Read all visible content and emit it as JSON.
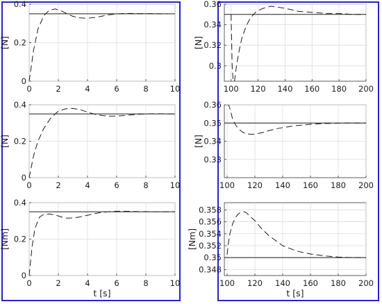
{
  "chart_data": [
    {
      "type": "line",
      "panel": "left-top",
      "ylabel": "[N]",
      "xlabel": "",
      "xlim": [
        0,
        10
      ],
      "ylim": [
        0,
        0.4
      ],
      "xticks": [
        0,
        2,
        4,
        6,
        8,
        10
      ],
      "xtick_labels": [
        "0",
        "2",
        "4",
        "6",
        "8",
        "10"
      ],
      "yticks": [
        0,
        0.2,
        0.4
      ],
      "ytick_labels": [
        "0",
        "0.2",
        "0.4"
      ],
      "grid": true,
      "series": [
        {
          "style": "solid",
          "x": [
            0,
            10
          ],
          "y": [
            0.35,
            0.35
          ]
        },
        {
          "style": "dashed",
          "x": [
            0,
            0.3,
            0.6,
            1.0,
            1.4,
            1.8,
            2.2,
            2.6,
            3.0,
            3.5,
            4.0,
            4.5,
            5.0,
            5.5,
            6.0,
            6.5,
            7.0,
            7.5,
            8.0,
            8.5,
            9.0,
            9.5
          ],
          "y": [
            0,
            0.16,
            0.27,
            0.34,
            0.37,
            0.375,
            0.365,
            0.35,
            0.337,
            0.329,
            0.327,
            0.331,
            0.338,
            0.345,
            0.349,
            0.352,
            0.352,
            0.351,
            0.351,
            0.351,
            0.35,
            0.35
          ]
        }
      ]
    },
    {
      "type": "line",
      "panel": "left-middle",
      "ylabel": "[N]",
      "xlabel": "",
      "xlim": [
        0,
        10
      ],
      "ylim": [
        0,
        0.4
      ],
      "xticks": [
        0,
        2,
        4,
        6,
        8,
        10
      ],
      "xtick_labels": [
        "0",
        "2",
        "4",
        "6",
        "8",
        "10"
      ],
      "yticks": [
        0,
        0.2,
        0.4
      ],
      "ytick_labels": [
        "0",
        "0.2",
        "0.4"
      ],
      "grid": true,
      "series": [
        {
          "style": "solid",
          "x": [
            0,
            10
          ],
          "y": [
            0.35,
            0.35
          ]
        },
        {
          "style": "dashed",
          "x": [
            0,
            0.3,
            0.6,
            1.0,
            1.5,
            2.0,
            2.5,
            3.0,
            3.5,
            4.0,
            4.5,
            5.0,
            5.5,
            6.0,
            6.5,
            7.0,
            7.5,
            8.0,
            8.5,
            9.0,
            9.5,
            10.0
          ],
          "y": [
            0,
            0.12,
            0.2,
            0.27,
            0.33,
            0.365,
            0.378,
            0.38,
            0.373,
            0.36,
            0.348,
            0.341,
            0.338,
            0.338,
            0.341,
            0.345,
            0.348,
            0.35,
            0.351,
            0.351,
            0.35,
            0.35
          ]
        }
      ]
    },
    {
      "type": "line",
      "panel": "left-bottom",
      "ylabel": "[Nm]",
      "xlabel": "t [s]",
      "xlim": [
        0,
        10
      ],
      "ylim": [
        0,
        0.4
      ],
      "xticks": [
        0,
        2,
        4,
        6,
        8,
        10
      ],
      "xtick_labels": [
        "0",
        "2",
        "4",
        "6",
        "8",
        "10"
      ],
      "yticks": [
        0,
        0.2,
        0.4
      ],
      "ytick_labels": [
        "0",
        "0.2",
        "0.4"
      ],
      "grid": true,
      "series": [
        {
          "style": "solid",
          "x": [
            0,
            10
          ],
          "y": [
            0.35,
            0.35
          ]
        },
        {
          "style": "dashed",
          "x": [
            0,
            0.2,
            0.4,
            0.7,
            1.0,
            1.4,
            1.8,
            2.2,
            2.6,
            3.0,
            3.5,
            4.0,
            4.5,
            5.0,
            5.5,
            6.0,
            6.5,
            7.0,
            7.5,
            8.0,
            9.0,
            10.0
          ],
          "y": [
            0,
            0.16,
            0.26,
            0.32,
            0.336,
            0.338,
            0.332,
            0.322,
            0.315,
            0.316,
            0.322,
            0.331,
            0.34,
            0.347,
            0.351,
            0.353,
            0.353,
            0.352,
            0.351,
            0.351,
            0.35,
            0.35
          ]
        }
      ]
    },
    {
      "type": "line",
      "panel": "right-top",
      "ylabel": "[N]",
      "xlabel": "",
      "xlim": [
        95,
        200
      ],
      "ylim": [
        0.285,
        0.36
      ],
      "xticks": [
        100,
        120,
        140,
        160,
        180,
        200
      ],
      "xtick_labels": [
        "100",
        "120",
        "140",
        "160",
        "180",
        "200"
      ],
      "yticks": [
        0.3,
        0.32,
        0.34,
        0.36
      ],
      "ytick_labels": [
        "0.3",
        "0.32",
        "0.34",
        "0.36"
      ],
      "grid": true,
      "series": [
        {
          "style": "solid",
          "x": [
            95,
            200
          ],
          "y": [
            0.35,
            0.35
          ]
        },
        {
          "style": "dashed",
          "x": [
            100,
            100.8,
            101.5,
            102.5,
            104,
            106,
            108,
            111,
            114,
            118,
            122,
            126,
            130,
            135,
            140,
            150,
            160,
            170,
            180,
            190,
            200
          ],
          "y": [
            0.35,
            0.3,
            0.285,
            0.285,
            0.3,
            0.315,
            0.327,
            0.338,
            0.346,
            0.352,
            0.355,
            0.357,
            0.358,
            0.357,
            0.356,
            0.353,
            0.352,
            0.351,
            0.351,
            0.35,
            0.35
          ]
        }
      ]
    },
    {
      "type": "line",
      "panel": "right-middle",
      "ylabel": "[N]",
      "xlabel": "",
      "xlim": [
        98,
        200
      ],
      "ylim": [
        0.32,
        0.36
      ],
      "xticks": [
        100,
        120,
        140,
        160,
        180,
        200
      ],
      "xtick_labels": [
        "100",
        "120",
        "140",
        "160",
        "180",
        "200"
      ],
      "yticks": [
        0.33,
        0.34,
        0.35,
        0.36
      ],
      "ytick_labels": [
        "0.33",
        "0.34",
        "0.35",
        "0.36"
      ],
      "grid": true,
      "series": [
        {
          "style": "solid",
          "x": [
            98,
            200
          ],
          "y": [
            0.35,
            0.35
          ]
        },
        {
          "style": "dashed",
          "x": [
            100,
            101,
            102,
            103,
            104,
            106,
            108,
            111,
            114,
            118,
            121,
            125,
            130,
            135,
            140,
            150,
            160,
            170,
            180,
            190,
            200
          ],
          "y": [
            0.36,
            0.36,
            0.358,
            0.355,
            0.352,
            0.349,
            0.347,
            0.345,
            0.344,
            0.3438,
            0.344,
            0.3447,
            0.3458,
            0.3468,
            0.3475,
            0.3486,
            0.3493,
            0.3497,
            0.3499,
            0.35,
            0.35
          ]
        }
      ]
    },
    {
      "type": "line",
      "panel": "right-bottom",
      "ylabel": "[Nm]",
      "xlabel": "t [s]",
      "xlim": [
        98,
        200
      ],
      "ylim": [
        0.347,
        0.3592
      ],
      "xticks": [
        100,
        120,
        140,
        160,
        180,
        200
      ],
      "xtick_labels": [
        "100",
        "120",
        "140",
        "160",
        "180",
        "200"
      ],
      "yticks": [
        0.348,
        0.35,
        0.352,
        0.354,
        0.356,
        0.358
      ],
      "ytick_labels": [
        "0.348",
        "0.35",
        "0.352",
        "0.354",
        "0.356",
        "0.358"
      ],
      "grid": true,
      "series": [
        {
          "style": "solid",
          "x": [
            98,
            200
          ],
          "y": [
            0.35,
            0.35
          ]
        },
        {
          "style": "dashed",
          "x": [
            100,
            101,
            102,
            104,
            106,
            108,
            110,
            112,
            114,
            116,
            120,
            125,
            130,
            140,
            150,
            160,
            170,
            180,
            190,
            200
          ],
          "y": [
            0.3505,
            0.3525,
            0.354,
            0.3557,
            0.3567,
            0.3573,
            0.3576,
            0.3577,
            0.3575,
            0.357,
            0.3562,
            0.3548,
            0.3537,
            0.352,
            0.3511,
            0.3506,
            0.3503,
            0.3501,
            0.35,
            0.35
          ]
        }
      ]
    }
  ]
}
